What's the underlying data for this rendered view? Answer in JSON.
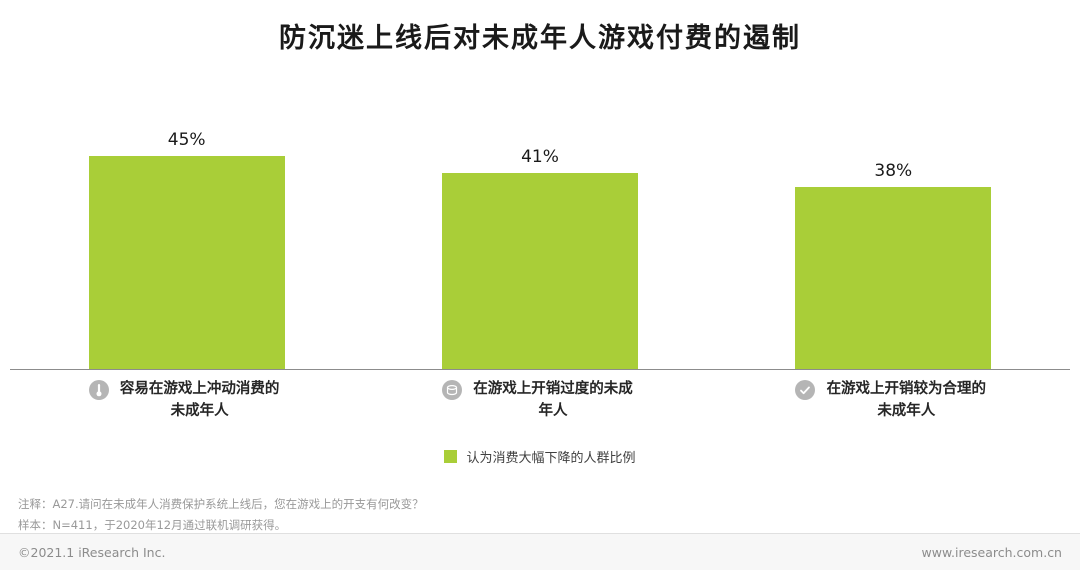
{
  "title": "防沉迷上线后对未成年人游戏付费的遏制",
  "chart_data": {
    "type": "bar",
    "title": "防沉迷上线后对未成年人游戏付费的遏制",
    "categories": [
      "容易在游戏上冲动消费的未成年人",
      "在游戏上开销过度的未成年人",
      "在游戏上开销较为合理的未成年人"
    ],
    "values": [
      45,
      41,
      38
    ],
    "value_labels": [
      "45%",
      "41%",
      "38%"
    ],
    "ylim": [
      0,
      50
    ],
    "grid": false,
    "legend_position": "bottom",
    "bar_color": "#a9ce38",
    "category_icons": [
      "thermometer-icon",
      "coins-icon",
      "check-icon"
    ],
    "legend": [
      {
        "label": "认为消费大幅下降的人群比例",
        "color": "#a9ce38"
      }
    ]
  },
  "legend": {
    "label": "认为消费大幅下降的人群比例"
  },
  "notes": {
    "line1": "注释：A27.请问在未成年人消费保护系统上线后，您在游戏上的开支有何改变？",
    "line2": "样本：N=411，于2020年12月通过联机调研获得。"
  },
  "footer": {
    "left": "©2021.1 iResearch Inc.",
    "right": "www.iresearch.com.cn"
  },
  "colors": {
    "bar": "#a9ce38",
    "axis_line": "#8c8c8c",
    "icon_gray": "#b5b5b5"
  }
}
